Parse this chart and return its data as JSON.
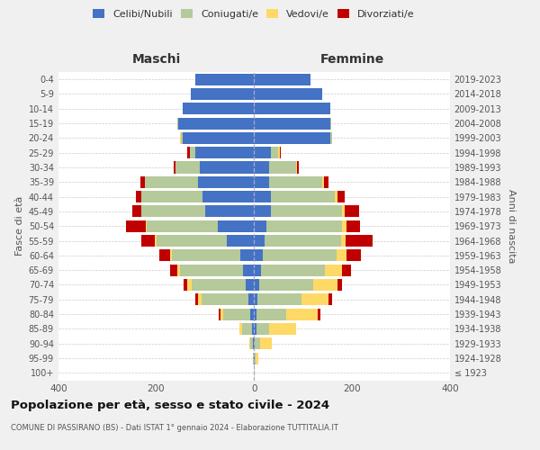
{
  "age_groups": [
    "100+",
    "95-99",
    "90-94",
    "85-89",
    "80-84",
    "75-79",
    "70-74",
    "65-69",
    "60-64",
    "55-59",
    "50-54",
    "45-49",
    "40-44",
    "35-39",
    "30-34",
    "25-29",
    "20-24",
    "15-19",
    "10-14",
    "5-9",
    "0-4"
  ],
  "birth_years": [
    "≤ 1923",
    "1924-1928",
    "1929-1933",
    "1934-1938",
    "1939-1943",
    "1944-1948",
    "1949-1953",
    "1954-1958",
    "1959-1963",
    "1964-1968",
    "1969-1973",
    "1974-1978",
    "1979-1983",
    "1984-1988",
    "1989-1993",
    "1994-1998",
    "1999-2003",
    "2004-2008",
    "2009-2013",
    "2014-2018",
    "2019-2023"
  ],
  "maschi_celibi": [
    1,
    1,
    3,
    5,
    8,
    12,
    18,
    22,
    28,
    55,
    75,
    100,
    105,
    115,
    110,
    120,
    145,
    155,
    145,
    130,
    120
  ],
  "maschi_coniugati": [
    0,
    1,
    5,
    20,
    55,
    95,
    110,
    130,
    140,
    145,
    145,
    130,
    125,
    108,
    50,
    12,
    5,
    2,
    0,
    0,
    0
  ],
  "maschi_vedovi": [
    0,
    0,
    2,
    5,
    5,
    8,
    8,
    5,
    4,
    2,
    2,
    0,
    0,
    0,
    0,
    0,
    2,
    0,
    0,
    0,
    0
  ],
  "maschi_divorziati": [
    0,
    0,
    0,
    0,
    5,
    5,
    8,
    15,
    22,
    28,
    40,
    18,
    12,
    10,
    5,
    5,
    0,
    0,
    0,
    0,
    0
  ],
  "femmine_nubili": [
    0,
    1,
    2,
    5,
    5,
    7,
    10,
    15,
    18,
    22,
    25,
    35,
    35,
    30,
    30,
    35,
    155,
    155,
    155,
    140,
    115
  ],
  "femmine_coniugate": [
    0,
    2,
    10,
    25,
    60,
    90,
    110,
    130,
    150,
    155,
    155,
    145,
    130,
    110,
    55,
    15,
    5,
    2,
    0,
    0,
    0
  ],
  "femmine_vedove": [
    1,
    5,
    25,
    55,
    65,
    55,
    50,
    35,
    20,
    10,
    8,
    5,
    5,
    2,
    2,
    2,
    0,
    0,
    0,
    0,
    0
  ],
  "femmine_divorziate": [
    0,
    0,
    0,
    0,
    5,
    8,
    10,
    18,
    30,
    55,
    28,
    30,
    15,
    10,
    5,
    2,
    0,
    0,
    0,
    0,
    0
  ],
  "colors": {
    "celibi": "#4472c4",
    "coniugati": "#b5c99a",
    "vedovi": "#ffd966",
    "divorziati": "#c00000"
  },
  "title": "Popolazione per età, sesso e stato civile - 2024",
  "subtitle": "COMUNE DI PASSIRANO (BS) - Dati ISTAT 1° gennaio 2024 - Elaborazione TUTTITALIA.IT",
  "label_maschi": "Maschi",
  "label_femmine": "Femmine",
  "ylabel_left": "Fasce di età",
  "ylabel_right": "Anni di nascita",
  "legend_labels": [
    "Celibi/Nubili",
    "Coniugati/e",
    "Vedovi/e",
    "Divorziati/e"
  ],
  "xlim": 400,
  "bg_color": "#f0f0f0",
  "plot_bg": "#ffffff"
}
